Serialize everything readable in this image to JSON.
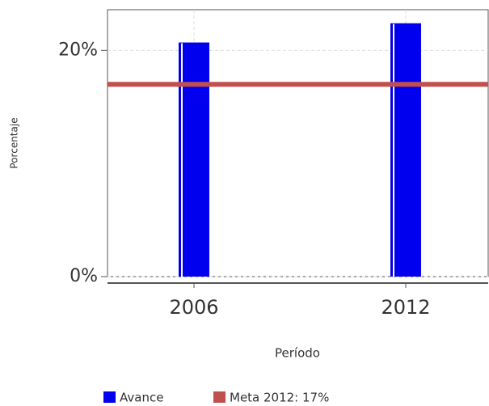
{
  "chart_data": {
    "type": "bar",
    "y_label": "Porcentaje",
    "x_label": "Período",
    "categories": [
      "2006",
      "2012"
    ],
    "series": [
      {
        "name": "Avance",
        "color": "#0000ee",
        "values": [
          20.7,
          22.4
        ]
      }
    ],
    "target": {
      "name": "Meta 2012: 17%",
      "value": 17,
      "color": "#c0504d"
    },
    "ylim": [
      0,
      23.6
    ],
    "yticks": [
      {
        "value": 0,
        "label": "0%"
      },
      {
        "value": 20,
        "label": "20%"
      }
    ],
    "grid": true
  }
}
